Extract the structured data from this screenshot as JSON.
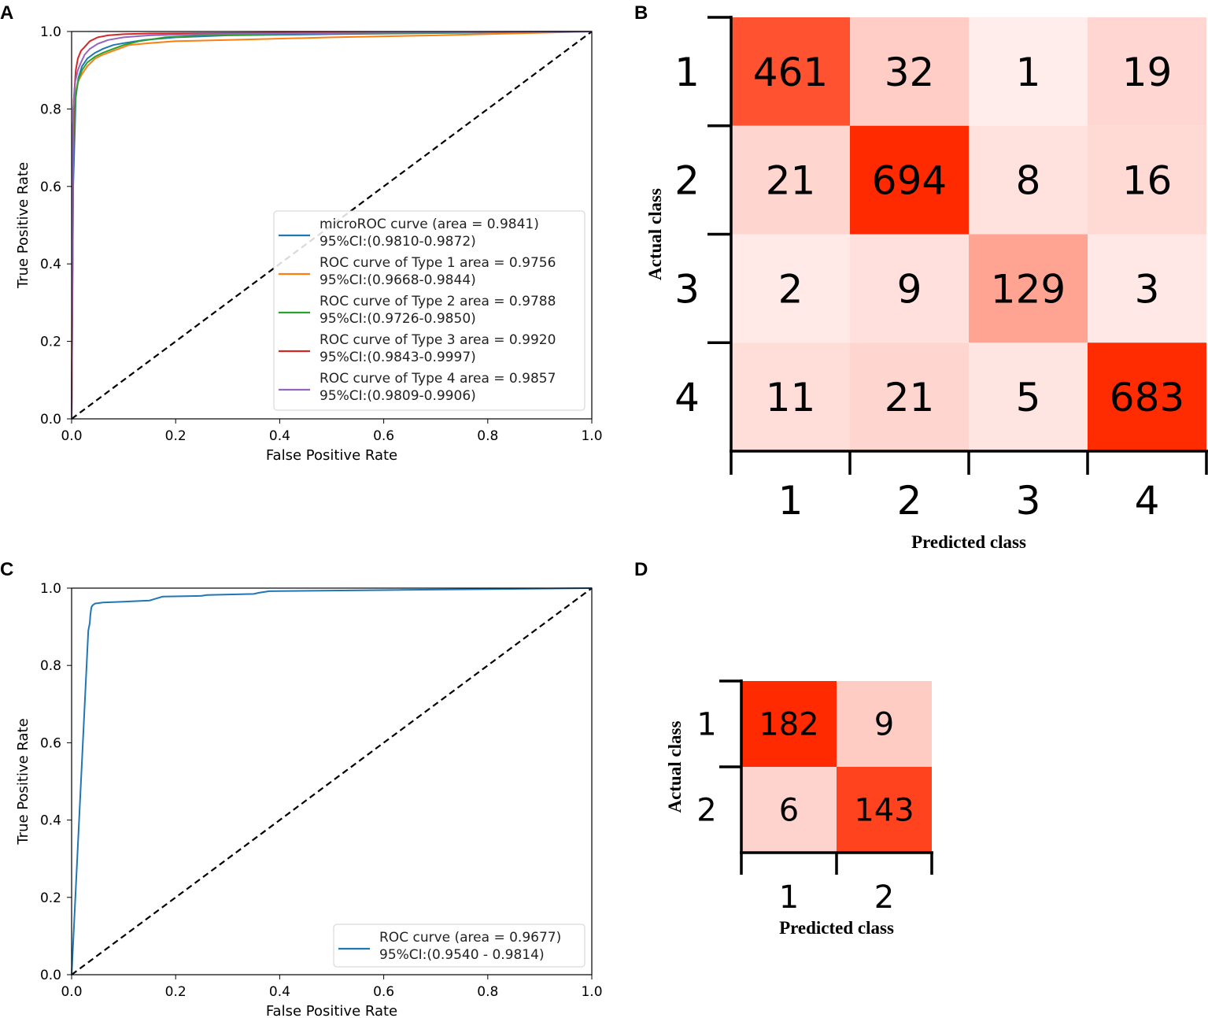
{
  "panels": {
    "a": "A",
    "b": "B",
    "c": "C",
    "d": "D"
  },
  "colors": {
    "micro": "#1f77b4",
    "type1": "#ff7f0e",
    "type2": "#2ca02c",
    "type3": "#d62728",
    "type4": "#9467bd",
    "single": "#1f77b4",
    "diagonal": "#000000",
    "cm_max": "#ff2a00"
  },
  "chart_data": [
    {
      "id": "A",
      "type": "line",
      "xlabel": "False Positive Rate",
      "ylabel": "True Positive Rate",
      "xlim": [
        0.0,
        1.0
      ],
      "ylim": [
        0.0,
        1.0
      ],
      "xticks": [
        "0.0",
        "0.2",
        "0.4",
        "0.6",
        "0.8",
        "1.0"
      ],
      "yticks": [
        "0.0",
        "0.2",
        "0.4",
        "0.6",
        "0.8",
        "1.0"
      ],
      "legend_position": "lower-right",
      "diagonal": true,
      "series": [
        {
          "name": "microROC curve (area = 0.9841)",
          "ci": "95%CI:(0.9810-0.9872)",
          "color_key": "micro",
          "x": [
            0,
            0.003,
            0.008,
            0.013,
            0.02,
            0.03,
            0.045,
            0.06,
            0.08,
            0.1,
            0.14,
            0.2,
            0.3,
            0.5,
            0.7,
            1.0
          ],
          "y": [
            0,
            0.6,
            0.83,
            0.88,
            0.91,
            0.93,
            0.945,
            0.955,
            0.965,
            0.97,
            0.978,
            0.985,
            0.99,
            0.993,
            0.996,
            1.0
          ]
        },
        {
          "name": "ROC curve of Type 1 area = 0.9756",
          "ci": "95%CI:(0.9668-0.9844)",
          "color_key": "type1",
          "x": [
            0,
            0.002,
            0.006,
            0.012,
            0.02,
            0.03,
            0.045,
            0.06,
            0.08,
            0.11,
            0.15,
            0.2,
            0.3,
            0.5,
            0.7,
            1.0
          ],
          "y": [
            0,
            0.75,
            0.83,
            0.87,
            0.89,
            0.91,
            0.93,
            0.94,
            0.95,
            0.965,
            0.97,
            0.975,
            0.978,
            0.985,
            0.99,
            1.0
          ]
        },
        {
          "name": "ROC curve of Type 2 area = 0.9788",
          "ci": "95%CI:(0.9726-0.9850)",
          "color_key": "type2",
          "x": [
            0,
            0.003,
            0.008,
            0.014,
            0.02,
            0.03,
            0.045,
            0.06,
            0.08,
            0.1,
            0.13,
            0.18,
            0.25,
            0.4,
            0.6,
            1.0
          ],
          "y": [
            0,
            0.7,
            0.84,
            0.88,
            0.9,
            0.92,
            0.935,
            0.945,
            0.955,
            0.965,
            0.975,
            0.985,
            0.99,
            0.993,
            0.996,
            1.0
          ]
        },
        {
          "name": "ROC curve of Type 3 area = 0.9920",
          "ci": "95%CI:(0.9843-0.9997)",
          "color_key": "type3",
          "x": [
            0,
            0.004,
            0.008,
            0.012,
            0.018,
            0.025,
            0.035,
            0.05,
            0.07,
            0.1,
            0.15,
            0.3,
            0.5,
            1.0
          ],
          "y": [
            0,
            0.82,
            0.9,
            0.93,
            0.95,
            0.96,
            0.975,
            0.985,
            0.99,
            0.993,
            0.995,
            0.996,
            0.998,
            1.0
          ]
        },
        {
          "name": "ROC curve of Type 4 area = 0.9857",
          "ci": "95%CI:(0.9809-0.9906)",
          "color_key": "type4",
          "x": [
            0,
            0.003,
            0.007,
            0.012,
            0.018,
            0.025,
            0.035,
            0.05,
            0.07,
            0.1,
            0.15,
            0.25,
            0.4,
            0.6,
            1.0
          ],
          "y": [
            0,
            0.8,
            0.87,
            0.9,
            0.92,
            0.94,
            0.955,
            0.968,
            0.978,
            0.985,
            0.99,
            0.993,
            0.995,
            0.997,
            1.0
          ]
        }
      ]
    },
    {
      "id": "B",
      "type": "heatmap",
      "xlabel": "Predicted class",
      "ylabel": "Actual class",
      "row_labels": [
        "1",
        "2",
        "3",
        "4"
      ],
      "col_labels": [
        "1",
        "2",
        "3",
        "4"
      ],
      "values": [
        [
          461,
          32,
          1,
          19
        ],
        [
          21,
          694,
          8,
          16
        ],
        [
          2,
          9,
          129,
          3
        ],
        [
          11,
          21,
          5,
          683
        ]
      ]
    },
    {
      "id": "C",
      "type": "line",
      "xlabel": "False Positive Rate",
      "ylabel": "True Positive Rate",
      "xlim": [
        0.0,
        1.0
      ],
      "ylim": [
        0.0,
        1.0
      ],
      "xticks": [
        "0.0",
        "0.2",
        "0.4",
        "0.6",
        "0.8",
        "1.0"
      ],
      "yticks": [
        "0.0",
        "0.2",
        "0.4",
        "0.6",
        "0.8",
        "1.0"
      ],
      "legend_position": "lower-right",
      "diagonal": true,
      "series": [
        {
          "name": "ROC curve (area = 0.9677)",
          "ci": "95%CI:(0.9540 - 0.9814)",
          "color_key": "single",
          "x": [
            0,
            0.032,
            0.035,
            0.036,
            0.038,
            0.04,
            0.045,
            0.06,
            0.1,
            0.15,
            0.16,
            0.175,
            0.25,
            0.26,
            0.35,
            0.36,
            0.38,
            0.6,
            1.0
          ],
          "y": [
            0,
            0.89,
            0.91,
            0.93,
            0.95,
            0.955,
            0.96,
            0.963,
            0.965,
            0.968,
            0.972,
            0.978,
            0.98,
            0.982,
            0.985,
            0.988,
            0.992,
            0.995,
            1.0
          ]
        }
      ]
    },
    {
      "id": "D",
      "type": "heatmap",
      "xlabel": "Predicted class",
      "ylabel": "Actual class",
      "row_labels": [
        "1",
        "2"
      ],
      "col_labels": [
        "1",
        "2"
      ],
      "values": [
        [
          182,
          9
        ],
        [
          6,
          143
        ]
      ]
    }
  ]
}
